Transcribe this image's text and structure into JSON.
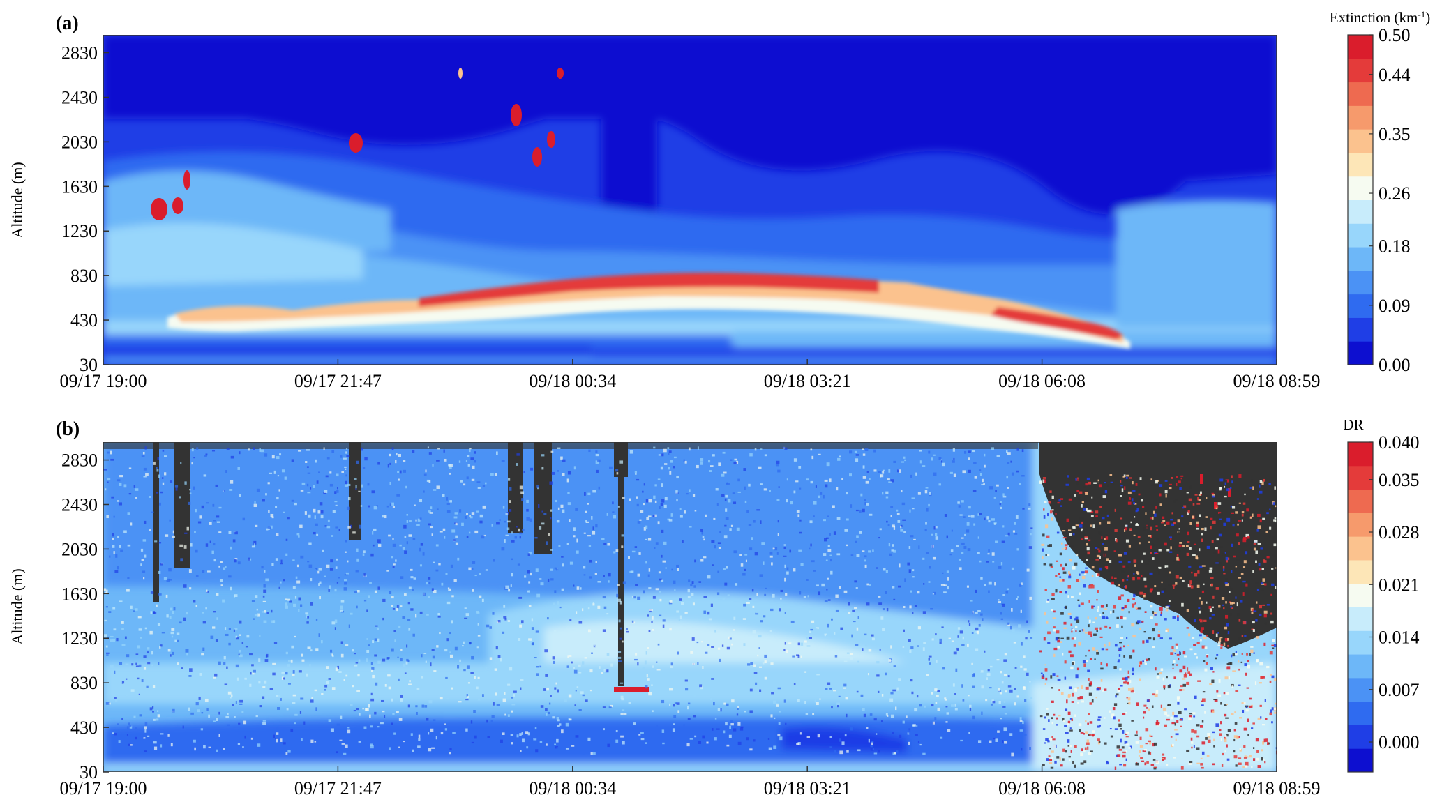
{
  "chart_data": [
    {
      "type": "heatmap",
      "panel_label": "(a)",
      "ylabel": "Altitude (m)",
      "y_ticks": [
        "30",
        "430",
        "830",
        "1230",
        "1630",
        "2030",
        "2430",
        "2830"
      ],
      "ylim": [
        30,
        2990
      ],
      "x_ticks": [
        "09/17 19:00",
        "09/17 21:47",
        "09/18 00:34",
        "09/18 03:21",
        "09/18 06:08",
        "09/18 08:59"
      ],
      "colorbar": {
        "title_base": "Extinction (km",
        "title_sup": "-1",
        "title_end": ")",
        "ticks": [
          "0.00",
          "0.09",
          "0.18",
          "0.26",
          "0.35",
          "0.44",
          "0.50"
        ],
        "range": [
          0,
          0.5
        ]
      },
      "features": [
        {
          "name": "boundary layer top aerosol layer",
          "altitude_m": [
            600,
            830
          ],
          "max_extinction": 0.5
        },
        {
          "name": "near-surface layer",
          "altitude_m": [
            30,
            200
          ],
          "extinction": 0.03
        },
        {
          "name": "cloud patches",
          "altitude_m": [
            1400,
            2600
          ],
          "extinction": 0.5
        }
      ]
    },
    {
      "type": "heatmap",
      "panel_label": "(b)",
      "ylabel": "Altitude (m)",
      "y_ticks": [
        "30",
        "430",
        "830",
        "1230",
        "1630",
        "2030",
        "2430",
        "2830"
      ],
      "ylim": [
        30,
        2990
      ],
      "x_ticks": [
        "09/17 19:00",
        "09/17 21:47",
        "09/18 00:34",
        "09/18 03:21",
        "09/18 06:08",
        "09/18 08:59"
      ],
      "colorbar": {
        "title": "DR",
        "ticks": [
          "0.000",
          "0.007",
          "0.014",
          "0.021",
          "0.028",
          "0.035",
          "0.040"
        ],
        "range": [
          -0.004,
          0.04
        ]
      },
      "features": [
        {
          "name": "low-DR surface layer",
          "altitude_m": [
            30,
            430
          ],
          "dr": 0.005
        },
        {
          "name": "noisy upper region after 06:08",
          "altitude_m": [
            1100,
            2990
          ],
          "dr": 0.035
        }
      ]
    }
  ],
  "colors": {
    "jet_levels": [
      "#0d0fd0",
      "#1f3ee6",
      "#2f6bf0",
      "#4b92f5",
      "#6db7f8",
      "#98d6fb",
      "#c8ecfb",
      "#f6fbf1",
      "#fde6b7",
      "#fbc28e",
      "#f69a6c",
      "#ee6a50",
      "#e43b3a",
      "#da1d2c"
    ],
    "missing": "#333333"
  }
}
